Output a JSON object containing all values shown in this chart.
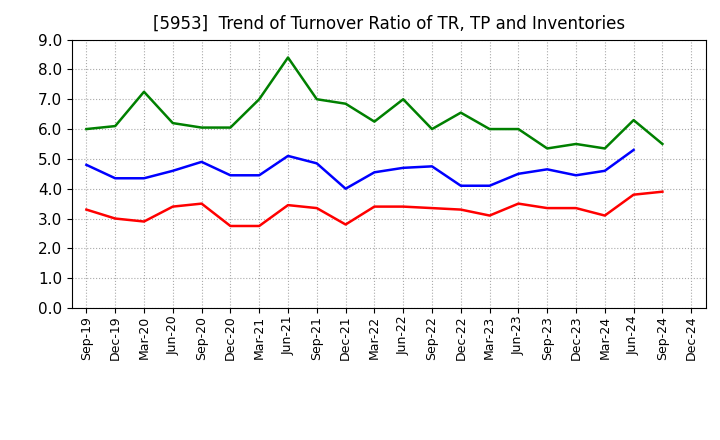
{
  "title": "[5953]  Trend of Turnover Ratio of TR, TP and Inventories",
  "x_labels": [
    "Sep-19",
    "Dec-19",
    "Mar-20",
    "Jun-20",
    "Sep-20",
    "Dec-20",
    "Mar-21",
    "Jun-21",
    "Sep-21",
    "Dec-21",
    "Mar-22",
    "Jun-22",
    "Sep-22",
    "Dec-22",
    "Mar-23",
    "Jun-23",
    "Sep-23",
    "Dec-23",
    "Mar-24",
    "Jun-24",
    "Sep-24",
    "Dec-24"
  ],
  "trade_receivables": [
    3.3,
    3.0,
    2.9,
    3.4,
    3.5,
    2.75,
    2.75,
    3.45,
    3.35,
    2.8,
    3.4,
    3.4,
    3.35,
    3.3,
    3.1,
    3.5,
    3.35,
    3.35,
    3.1,
    3.8,
    3.9,
    null
  ],
  "trade_payables": [
    4.8,
    4.35,
    4.35,
    4.6,
    4.9,
    4.45,
    4.45,
    5.1,
    4.85,
    4.0,
    4.55,
    4.7,
    4.75,
    4.1,
    4.1,
    4.5,
    4.65,
    4.45,
    4.6,
    5.3,
    null,
    null
  ],
  "inventories": [
    6.0,
    6.1,
    7.25,
    6.2,
    6.05,
    6.05,
    7.0,
    8.4,
    7.0,
    6.85,
    6.25,
    7.0,
    6.0,
    6.55,
    6.0,
    6.0,
    5.35,
    5.5,
    5.35,
    6.3,
    5.5,
    null
  ],
  "tr_color": "#ff0000",
  "tp_color": "#0000ff",
  "inv_color": "#008000",
  "ylim": [
    0.0,
    9.0
  ],
  "yticks": [
    0.0,
    1.0,
    2.0,
    3.0,
    4.0,
    5.0,
    6.0,
    7.0,
    8.0,
    9.0
  ],
  "background_color": "#ffffff",
  "grid_color": "#aaaaaa",
  "title_fontsize": 12,
  "legend_fontsize": 10,
  "axis_fontsize": 9,
  "ytick_fontsize": 11
}
